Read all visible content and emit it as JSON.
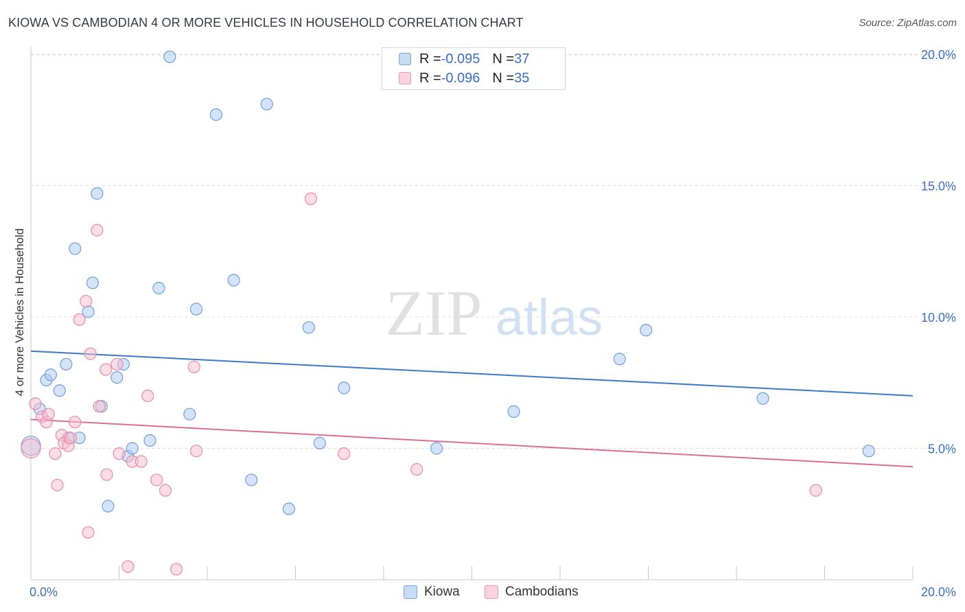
{
  "title": "KIOWA VS CAMBODIAN 4 OR MORE VEHICLES IN HOUSEHOLD CORRELATION CHART",
  "source": "Source: ZipAtlas.com",
  "watermark": {
    "zip": "ZIP",
    "atlas": "atlas"
  },
  "legend": {
    "r_label": "R = ",
    "n_label": "N = ",
    "kiowa": {
      "r": "-0.095",
      "n": "37"
    },
    "cambodians": {
      "r": "-0.096",
      "n": "35"
    }
  },
  "colors": {
    "kiowa_fill": "#aac8ef",
    "kiowa_stroke": "#6f9fdd",
    "kiowa_line": "#3b78cc",
    "camb_fill": "#f7bccd",
    "camb_stroke": "#e98aa8",
    "camb_line": "#e06c94",
    "tick_label": "#3a6fc4",
    "grid": "#dcdcdc"
  },
  "chart_data": {
    "type": "scatter",
    "title": "KIOWA VS CAMBODIAN 4 OR MORE VEHICLES IN HOUSEHOLD CORRELATION CHART",
    "xlabel": "",
    "ylabel": "4 or more Vehicles in Household",
    "xlim": [
      0,
      20
    ],
    "ylim": [
      0,
      20.5
    ],
    "x_tick_labels": [
      "0.0%",
      "20.0%"
    ],
    "y_ticks": [
      5,
      10,
      15,
      20
    ],
    "y_tick_labels": [
      "5.0%",
      "10.0%",
      "15.0%",
      "20.0%"
    ],
    "legend_entries": [
      "Kiowa",
      "Cambodians"
    ],
    "series": [
      {
        "name": "Kiowa",
        "points": [
          [
            0,
            5.1
          ],
          [
            0.2,
            6.5
          ],
          [
            0.35,
            7.6
          ],
          [
            0.45,
            7.8
          ],
          [
            0.65,
            7.2
          ],
          [
            0.8,
            8.2
          ],
          [
            0.85,
            5.4
          ],
          [
            1.1,
            5.4
          ],
          [
            1.0,
            12.6
          ],
          [
            1.3,
            10.2
          ],
          [
            1.4,
            11.3
          ],
          [
            1.5,
            14.7
          ],
          [
            1.6,
            6.6
          ],
          [
            1.75,
            2.8
          ],
          [
            1.95,
            7.7
          ],
          [
            2.1,
            8.2
          ],
          [
            2.2,
            4.7
          ],
          [
            2.3,
            5.0
          ],
          [
            2.7,
            5.3
          ],
          [
            2.9,
            11.1
          ],
          [
            3.15,
            19.9
          ],
          [
            3.6,
            6.3
          ],
          [
            3.75,
            10.3
          ],
          [
            4.2,
            17.7
          ],
          [
            4.6,
            11.4
          ],
          [
            5.0,
            3.8
          ],
          [
            5.35,
            18.1
          ],
          [
            5.85,
            2.7
          ],
          [
            6.3,
            9.6
          ],
          [
            6.55,
            5.2
          ],
          [
            7.1,
            7.3
          ],
          [
            9.2,
            5.0
          ],
          [
            10.95,
            6.4
          ],
          [
            13.35,
            8.4
          ],
          [
            13.95,
            9.5
          ],
          [
            16.6,
            6.9
          ],
          [
            19.0,
            4.9
          ]
        ],
        "trend": {
          "x": [
            0,
            20
          ],
          "y": [
            8.7,
            7.0
          ]
        }
      },
      {
        "name": "Cambodians",
        "points": [
          [
            0,
            5.0
          ],
          [
            0.1,
            6.7
          ],
          [
            0.25,
            6.2
          ],
          [
            0.35,
            6.0
          ],
          [
            0.4,
            6.3
          ],
          [
            0.55,
            4.8
          ],
          [
            0.6,
            3.6
          ],
          [
            0.7,
            5.5
          ],
          [
            0.75,
            5.2
          ],
          [
            0.85,
            5.1
          ],
          [
            0.9,
            5.4
          ],
          [
            1.0,
            6.0
          ],
          [
            1.1,
            9.9
          ],
          [
            1.25,
            10.6
          ],
          [
            1.3,
            1.8
          ],
          [
            1.35,
            8.6
          ],
          [
            1.5,
            13.3
          ],
          [
            1.55,
            6.6
          ],
          [
            1.7,
            8.0
          ],
          [
            1.72,
            4.0
          ],
          [
            1.95,
            8.2
          ],
          [
            2.0,
            4.8
          ],
          [
            2.3,
            4.5
          ],
          [
            2.5,
            4.5
          ],
          [
            2.2,
            0.5
          ],
          [
            2.65,
            7.0
          ],
          [
            2.85,
            3.8
          ],
          [
            3.05,
            3.4
          ],
          [
            3.3,
            0.4
          ],
          [
            3.7,
            8.1
          ],
          [
            3.75,
            4.9
          ],
          [
            6.35,
            14.5
          ],
          [
            7.1,
            4.8
          ],
          [
            8.75,
            4.2
          ],
          [
            17.8,
            3.4
          ]
        ],
        "trend": {
          "x": [
            0,
            20
          ],
          "y": [
            6.1,
            4.3
          ]
        }
      }
    ]
  }
}
